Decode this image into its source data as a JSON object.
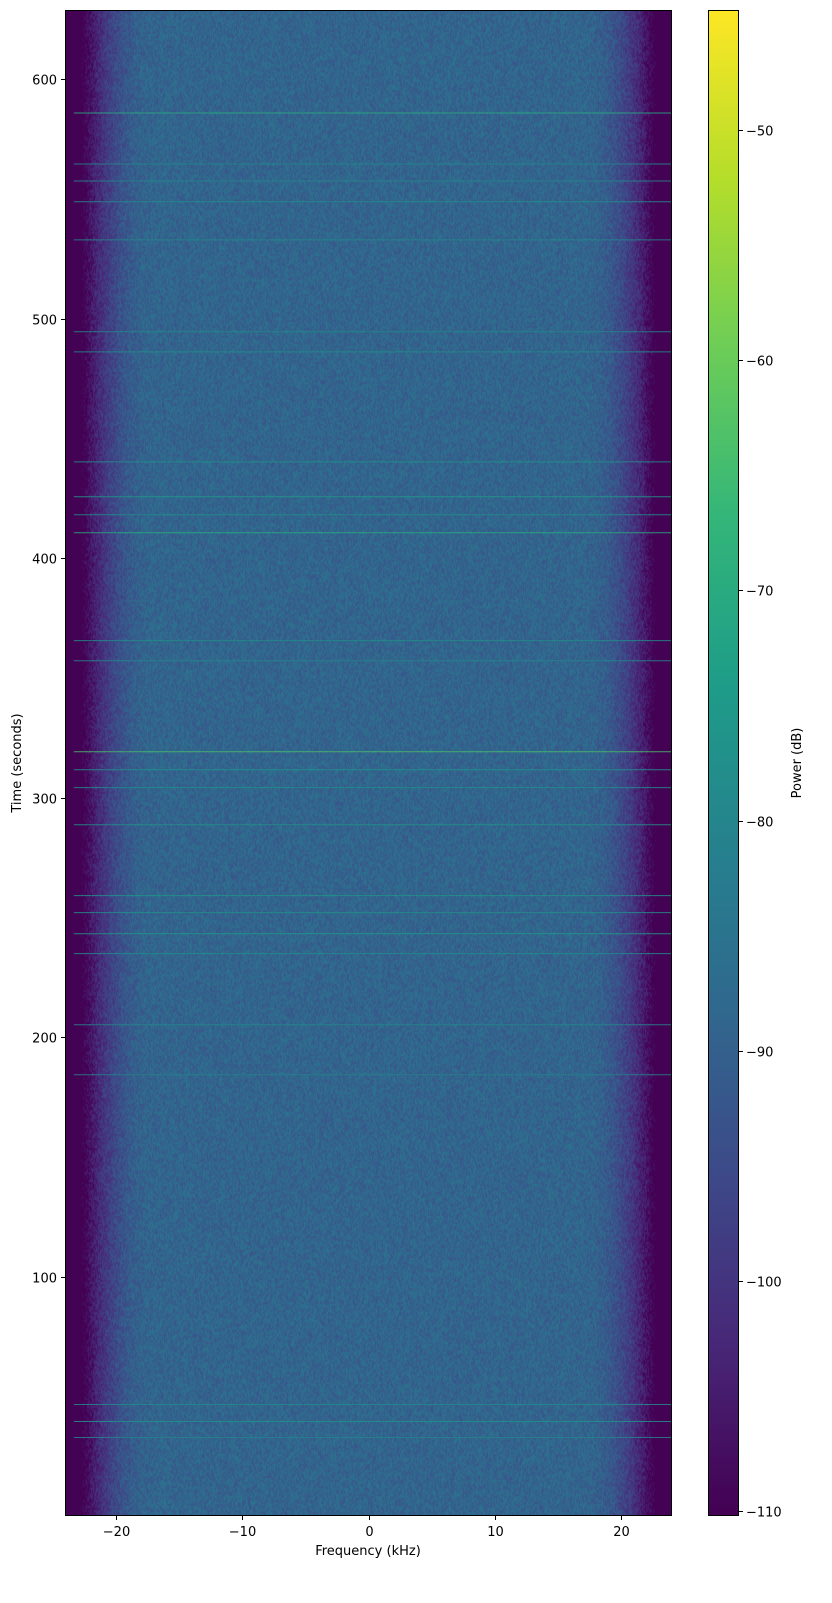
{
  "chart_data": {
    "type": "heatmap",
    "subtype": "spectrogram",
    "xlabel": "Frequency (kHz)",
    "ylabel": "Time (seconds)",
    "colorbar_label": "Power (dB)",
    "colormap": "viridis",
    "xlim": [
      -24,
      24
    ],
    "ylim": [
      0,
      629
    ],
    "clim": [
      -110.2,
      -44.8
    ],
    "xticks": [
      "−20",
      "−10",
      "0",
      "10",
      "20"
    ],
    "xtick_values": [
      -20,
      -10,
      0,
      10,
      20
    ],
    "yticks": [
      "100",
      "200",
      "300",
      "400",
      "500",
      "600"
    ],
    "ytick_values": [
      100,
      200,
      300,
      400,
      500,
      600
    ],
    "cticks": [
      "−50",
      "−60",
      "−70",
      "−80",
      "−90",
      "−100",
      "−110"
    ],
    "ctick_values": [
      -50,
      -60,
      -70,
      -80,
      -90,
      -100,
      -110
    ],
    "background_power_db": -89,
    "passband_khz": [
      -22,
      22
    ],
    "edge_power_db": -110,
    "bursts": [
      {
        "time": 586.2,
        "power_db": -70
      },
      {
        "time": 564.9,
        "power_db": -80
      },
      {
        "time": 557.8,
        "power_db": -80
      },
      {
        "time": 549.1,
        "power_db": -78
      },
      {
        "time": 533.2,
        "power_db": -79
      },
      {
        "time": 494.8,
        "power_db": -79
      },
      {
        "time": 486.4,
        "power_db": -78
      },
      {
        "time": 440.5,
        "power_db": -77
      },
      {
        "time": 425.9,
        "power_db": -75
      },
      {
        "time": 418.4,
        "power_db": -78
      },
      {
        "time": 410.9,
        "power_db": -70
      },
      {
        "time": 365.8,
        "power_db": -78
      },
      {
        "time": 357.4,
        "power_db": -80
      },
      {
        "time": 319.4,
        "power_db": -64
      },
      {
        "time": 311.9,
        "power_db": -77
      },
      {
        "time": 304.4,
        "power_db": -78
      },
      {
        "time": 288.9,
        "power_db": -77
      },
      {
        "time": 259.3,
        "power_db": -76
      },
      {
        "time": 252.2,
        "power_db": -77
      },
      {
        "time": 243.4,
        "power_db": -75
      },
      {
        "time": 235.1,
        "power_db": -78
      },
      {
        "time": 205.4,
        "power_db": -80
      },
      {
        "time": 184.5,
        "power_db": -81
      },
      {
        "time": 46.8,
        "power_db": -79
      },
      {
        "time": 39.7,
        "power_db": -77
      },
      {
        "time": 33.0,
        "power_db": -81
      }
    ]
  }
}
